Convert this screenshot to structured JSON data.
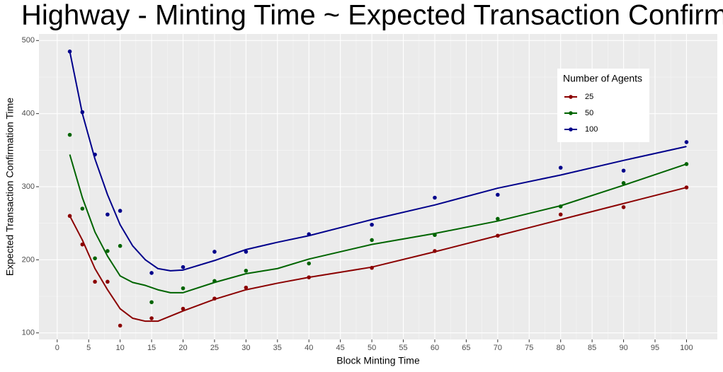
{
  "chart_data": {
    "type": "scatter",
    "title": "Highway - Minting Time ~ Expected Transaction Confirmation Time",
    "x_label": "Block Minting Time",
    "y_label": "Expected Transaction Confirmation Time",
    "legend_title": "Number of Agents",
    "legend_position": "top-right",
    "grid": true,
    "x": [
      2,
      4,
      6,
      8,
      10,
      15,
      20,
      25,
      30,
      40,
      50,
      60,
      70,
      80,
      90,
      100
    ],
    "smooth_x": [
      2,
      4,
      6,
      8,
      10,
      12,
      14,
      16,
      18,
      20,
      25,
      30,
      35,
      40,
      50,
      60,
      70,
      80,
      90,
      100
    ],
    "series": [
      {
        "name": "25",
        "color": "#8b0000",
        "values": [
          260,
          221,
          170,
          170,
          110,
          120,
          133,
          147,
          162,
          176,
          189,
          212,
          233,
          262,
          272,
          299
        ],
        "smooth_values": [
          260,
          227,
          188,
          159,
          133,
          120,
          116,
          116,
          123,
          130,
          146,
          159,
          168,
          176,
          190,
          211,
          233,
          255,
          277,
          299
        ]
      },
      {
        "name": "50",
        "color": "#006400",
        "values": [
          371,
          270,
          202,
          212,
          219,
          142,
          161,
          171,
          185,
          195,
          227,
          234,
          256,
          273,
          305,
          331
        ],
        "smooth_values": [
          344,
          285,
          238,
          205,
          178,
          169,
          165,
          159,
          155,
          155,
          169,
          181,
          188,
          201,
          221,
          236,
          253,
          274,
          302,
          331
        ]
      },
      {
        "name": "100",
        "color": "#00008b",
        "values": [
          485,
          402,
          344,
          262,
          267,
          182,
          190,
          211,
          211,
          235,
          248,
          285,
          289,
          326,
          322,
          361
        ],
        "smooth_values": [
          485,
          400,
          338,
          289,
          248,
          219,
          200,
          188,
          185,
          186,
          199,
          214,
          224,
          233,
          255,
          275,
          298,
          316,
          336,
          355
        ]
      }
    ],
    "xlim": [
      -2.9,
      104.9
    ],
    "xticks": [
      0,
      5,
      10,
      15,
      20,
      25,
      30,
      35,
      40,
      45,
      50,
      55,
      60,
      65,
      70,
      75,
      80,
      85,
      90,
      95,
      100
    ],
    "ylim": [
      91,
      509
    ],
    "yticks": [
      100,
      200,
      300,
      400,
      500
    ]
  }
}
